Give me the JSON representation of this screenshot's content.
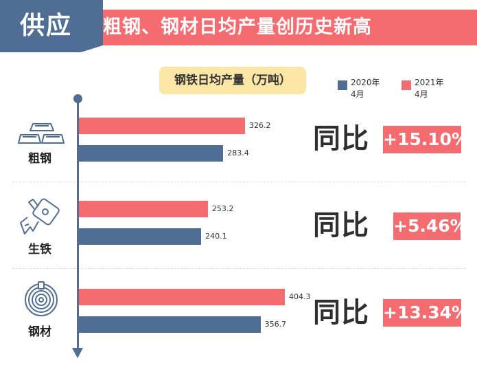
{
  "header": {
    "tag": "供应",
    "title": "粗钢、钢材日均产量创历史新高"
  },
  "colors": {
    "series_2020": "#4f6d95",
    "series_2021": "#f46b70",
    "header_tab": "#4f6d95",
    "header_bar": "#f46b70",
    "title_box": "#fbe6a6"
  },
  "chart_data": {
    "type": "bar",
    "orientation": "horizontal",
    "title": "钢铁日均产量（万吨）",
    "categories": [
      "粗钢",
      "生铁",
      "钢材"
    ],
    "series": [
      {
        "name": "2021年4月",
        "color": "#f46b70",
        "values": [
          326.2,
          253.2,
          404.3
        ]
      },
      {
        "name": "2020年4月",
        "color": "#4f6d95",
        "values": [
          283.4,
          240.1,
          356.7
        ]
      }
    ],
    "value_labels": {
      "s2021": [
        "326.2",
        "253.2",
        "404.3"
      ],
      "s2020": [
        "283.4",
        "240.1",
        "356.7"
      ]
    },
    "yoy_label": "同比",
    "yoy_change": [
      "+15.10%",
      "+5.46%",
      "+13.34%"
    ],
    "legend": [
      {
        "line1": "2020年",
        "line2": "4月",
        "color": "#4f6d95"
      },
      {
        "line1": "2021年",
        "line2": "4月",
        "color": "#f46b70"
      }
    ],
    "legend_position": "top-right",
    "icons": [
      "gold-bars-icon",
      "pig-iron-icon",
      "steel-coil-icon"
    ],
    "grid": false
  }
}
